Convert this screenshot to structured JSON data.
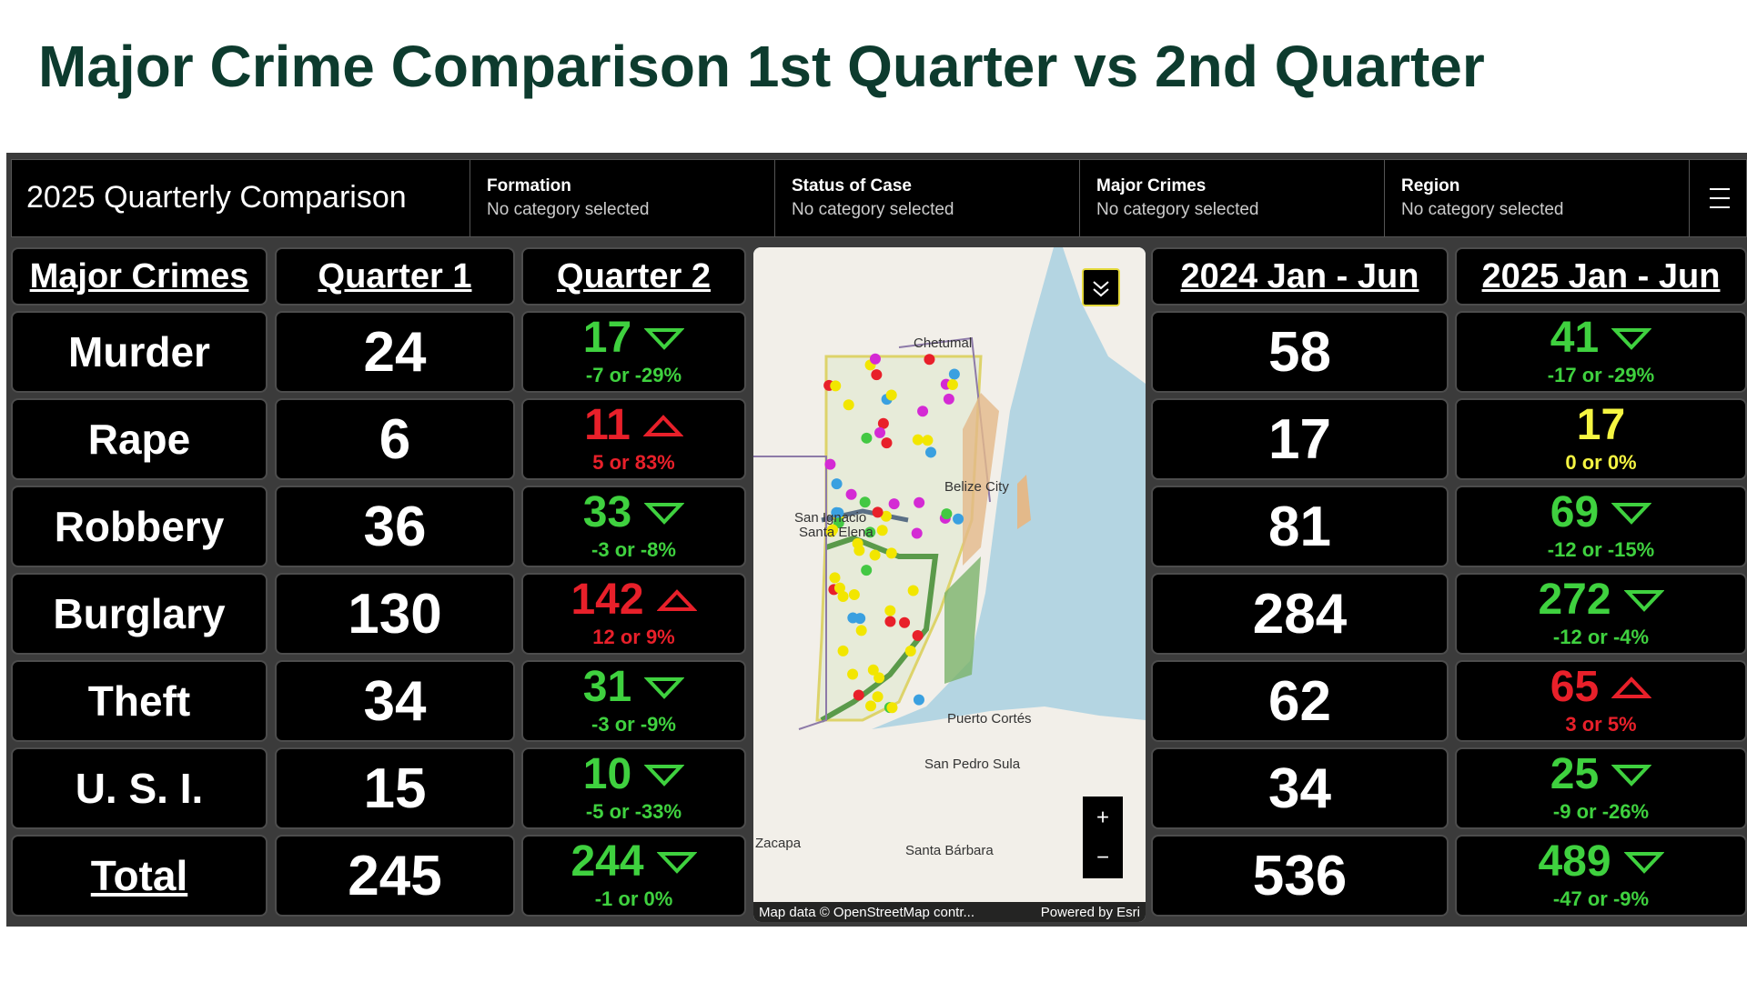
{
  "title": "Major Crime Comparison 1st Quarter vs 2nd Quarter",
  "dashboard": {
    "title": "2025 Quarterly Comparison",
    "filters": [
      {
        "label": "Formation",
        "value": "No category selected"
      },
      {
        "label": "Status of Case",
        "value": "No category selected"
      },
      {
        "label": "Major Crimes",
        "value": "No category selected"
      },
      {
        "label": "Region",
        "value": "No category selected"
      }
    ]
  },
  "quarterly_table": {
    "headers": [
      "Major Crimes",
      "Quarter 1",
      "Quarter 2"
    ],
    "rows": [
      {
        "crime": "Murder",
        "q1": 24,
        "q2": 17,
        "q2_change": "-7 or -29%"
      },
      {
        "crime": "Rape",
        "q1": 6,
        "q2": 11,
        "q2_change": "5 or 83%"
      },
      {
        "crime": "Robbery",
        "q1": 36,
        "q2": 33,
        "q2_change": "-3 or -8%"
      },
      {
        "crime": "Burglary",
        "q1": 130,
        "q2": 142,
        "q2_change": "12 or 9%"
      },
      {
        "crime": "Theft",
        "q1": 34,
        "q2": 31,
        "q2_change": "-3 or -9%"
      },
      {
        "crime": "U. S. I.",
        "q1": 15,
        "q2": 10,
        "q2_change": "-5 or -33%"
      },
      {
        "crime": "Total",
        "q1": 245,
        "q2": 244,
        "q2_change": "-1 or 0%"
      }
    ]
  },
  "half_year_table": {
    "headers": [
      "2024 Jan - Jun",
      "2025 Jan - Jun"
    ],
    "rows": [
      {
        "h2024": 58,
        "h2025": 41,
        "h2025_change": "-17 or -29%"
      },
      {
        "h2024": 17,
        "h2025": 17,
        "h2025_change": "0 or 0%"
      },
      {
        "h2024": 81,
        "h2025": 69,
        "h2025_change": "-12 or -15%"
      },
      {
        "h2024": 284,
        "h2025": 272,
        "h2025_change": "-12 or -4%"
      },
      {
        "h2024": 62,
        "h2025": 65,
        "h2025_change": "3 or 5%"
      },
      {
        "h2024": 34,
        "h2025": 25,
        "h2025_change": "-9 or -26%"
      },
      {
        "h2024": 536,
        "h2025": 489,
        "h2025_change": "-47 or -9%"
      }
    ]
  },
  "map": {
    "labels": [
      "Chetumal",
      "Belize City",
      "San Ignacio",
      "Santa Elena",
      "Puerto Cortés",
      "San Pedro Sula",
      "Zacapa",
      "Santa Bárbara"
    ],
    "attribution": "Map data © OpenStreetMap contr...",
    "powered_by": "Powered by Esri",
    "zoom_in": "+",
    "zoom_out": "−"
  }
}
